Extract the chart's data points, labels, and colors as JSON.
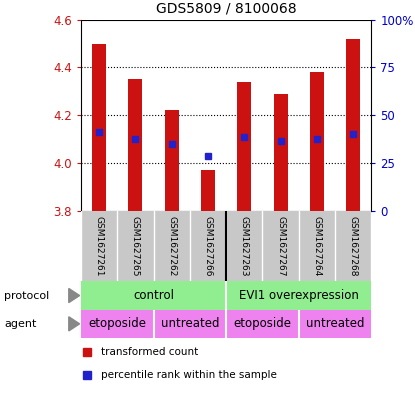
{
  "title": "GDS5809 / 8100068",
  "samples": [
    "GSM1627261",
    "GSM1627265",
    "GSM1627262",
    "GSM1627266",
    "GSM1627263",
    "GSM1627267",
    "GSM1627264",
    "GSM1627268"
  ],
  "bar_values": [
    4.5,
    4.35,
    4.22,
    3.97,
    4.34,
    4.29,
    4.38,
    4.52
  ],
  "bar_base": 3.8,
  "percentile_values": [
    4.13,
    4.1,
    4.08,
    4.03,
    4.11,
    4.09,
    4.1,
    4.12
  ],
  "ylim": [
    3.8,
    4.6
  ],
  "y2lim": [
    0,
    100
  ],
  "yticks": [
    3.8,
    4.0,
    4.2,
    4.4,
    4.6
  ],
  "y2ticks": [
    0,
    25,
    50,
    75,
    100
  ],
  "y2ticklabels": [
    "0",
    "25",
    "50",
    "75",
    "100%"
  ],
  "bar_color": "#cc1111",
  "percentile_color": "#2222cc",
  "protocol_labels": [
    "control",
    "EVI1 overexpression"
  ],
  "protocol_color": "#90ee90",
  "agent_labels": [
    "etoposide",
    "untreated",
    "etoposide",
    "untreated"
  ],
  "agent_color": "#ee82ee",
  "background_color": "#ffffff",
  "xlabel_color": "#cc1111",
  "y2label_color": "#0000cc",
  "gray_color": "#c8c8c8",
  "separator_color": "#000000"
}
